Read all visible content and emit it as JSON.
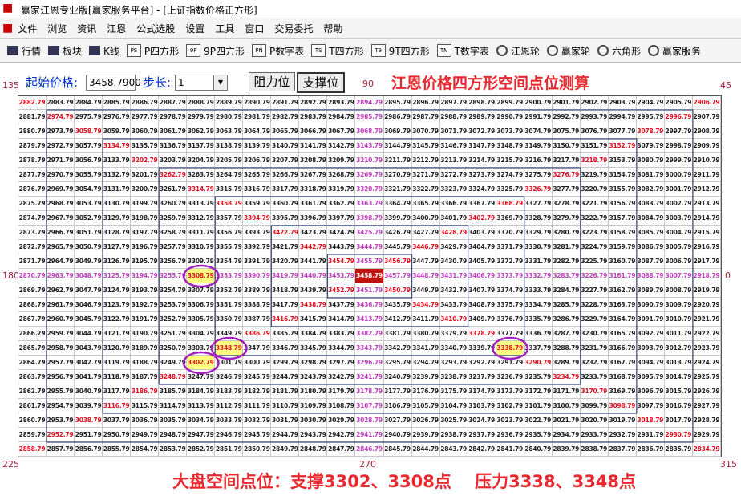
{
  "window": {
    "title": "赢家江恩专业版[赢家服务平台] - [上证指数价格正方形]"
  },
  "menu": [
    "文件",
    "浏览",
    "资讯",
    "江恩",
    "公式选股",
    "设置",
    "工具",
    "窗口",
    "交易委托",
    "帮助"
  ],
  "toolbar": [
    {
      "label": "行情"
    },
    {
      "label": "板块"
    },
    {
      "label": "K线"
    },
    {
      "icon": "PS",
      "label": "P四方形"
    },
    {
      "icon": "9P",
      "label": "9P四方形"
    },
    {
      "icon": "PN",
      "label": "P数字表"
    },
    {
      "icon": "TS",
      "label": "T四方形"
    },
    {
      "icon": "T9",
      "label": "9T四方形"
    },
    {
      "icon": "TN",
      "label": "T数字表"
    },
    {
      "label": "江恩轮"
    },
    {
      "label": "赢家轮"
    },
    {
      "label": "六角形"
    },
    {
      "label": "赢家服务"
    }
  ],
  "controls": {
    "start_label": "起始价格:",
    "start_value": "3458.7900",
    "step_label": "步长:",
    "step_value": "1",
    "buttons": [
      "阻力位",
      "支撑位"
    ]
  },
  "heading": "江恩价格四方形空间点位测算",
  "angles": {
    "top_left": "135",
    "top": "90",
    "top_right": "45",
    "left": "180",
    "right": "0",
    "bottom_left": "225",
    "bottom": "270",
    "bottom_right": "315"
  },
  "grid": {
    "rows": [
      [
        "2882.79",
        "2883.79",
        "2884.79",
        "2885.79",
        "2886.79",
        "2887.79",
        "2888.79",
        "2889.79",
        "2890.79",
        "2891.79",
        "2892.79",
        "2893.79",
        "2894.79",
        "2895.79",
        "2896.79",
        "2897.79",
        "2898.79",
        "2899.79",
        "2900.79",
        "2901.79",
        "2902.79",
        "2903.79",
        "2904.79",
        "2905.79",
        "2906.79"
      ],
      [
        "2881.79",
        "2974.79",
        "2975.79",
        "2976.79",
        "2977.79",
        "2978.79",
        "2979.79",
        "2980.79",
        "2981.79",
        "2982.79",
        "2983.79",
        "2984.79",
        "2985.79",
        "2986.79",
        "2987.79",
        "2988.79",
        "2989.79",
        "2990.79",
        "2991.79",
        "2992.79",
        "2993.79",
        "2994.79",
        "2995.79",
        "2996.79",
        "2907.79"
      ],
      [
        "2880.79",
        "2973.79",
        "3058.79",
        "3059.79",
        "3060.79",
        "3061.79",
        "3062.79",
        "3063.79",
        "3064.79",
        "3065.79",
        "3066.79",
        "3067.79",
        "3068.79",
        "3069.79",
        "3070.79",
        "3071.79",
        "3072.79",
        "3073.79",
        "3074.79",
        "3075.79",
        "3076.79",
        "3077.79",
        "3078.79",
        "2997.79",
        "2908.79"
      ],
      [
        "2879.79",
        "2972.79",
        "3057.79",
        "3134.79",
        "3135.79",
        "3136.79",
        "3137.79",
        "3138.79",
        "3139.79",
        "3140.79",
        "3141.79",
        "3142.79",
        "3143.79",
        "3144.79",
        "3145.79",
        "3146.79",
        "3147.79",
        "3148.79",
        "3149.79",
        "3150.79",
        "3151.79",
        "3152.79",
        "3079.79",
        "2998.79",
        "2909.79"
      ],
      [
        "2878.79",
        "2971.79",
        "3056.79",
        "3133.79",
        "3202.79",
        "3203.79",
        "3204.79",
        "3205.79",
        "3206.79",
        "3207.79",
        "3208.79",
        "3209.79",
        "3210.79",
        "3211.79",
        "3212.79",
        "3213.79",
        "3214.79",
        "3215.79",
        "3216.79",
        "3217.79",
        "3218.79",
        "3153.79",
        "3080.79",
        "2999.79",
        "2910.79"
      ],
      [
        "2877.79",
        "2970.79",
        "3055.79",
        "3132.79",
        "3201.79",
        "3262.79",
        "3263.79",
        "3264.79",
        "3265.79",
        "3266.79",
        "3267.79",
        "3268.79",
        "3269.79",
        "3270.79",
        "3271.79",
        "3272.79",
        "3273.79",
        "3274.79",
        "3275.79",
        "3276.79",
        "3219.79",
        "3154.79",
        "3081.79",
        "3000.79",
        "2911.79"
      ],
      [
        "2876.79",
        "2969.79",
        "3054.79",
        "3131.79",
        "3200.79",
        "3261.79",
        "3314.79",
        "3315.79",
        "3316.79",
        "3317.79",
        "3318.79",
        "3319.79",
        "3320.79",
        "3321.79",
        "3322.79",
        "3323.79",
        "3324.79",
        "3325.79",
        "3326.79",
        "3277.79",
        "3220.79",
        "3155.79",
        "3082.79",
        "3001.79",
        "2912.79"
      ],
      [
        "2875.79",
        "2968.79",
        "3053.79",
        "3130.79",
        "3199.79",
        "3260.79",
        "3313.79",
        "3358.79",
        "3359.79",
        "3360.79",
        "3361.79",
        "3362.79",
        "3363.79",
        "3364.79",
        "3365.79",
        "3366.79",
        "3367.79",
        "3368.79",
        "3327.79",
        "3278.79",
        "3221.79",
        "3156.79",
        "3083.79",
        "3002.79",
        "2913.79"
      ],
      [
        "2874.79",
        "2967.79",
        "3052.79",
        "3129.79",
        "3198.79",
        "3259.79",
        "3312.79",
        "3357.79",
        "3394.79",
        "3395.79",
        "3396.79",
        "3397.79",
        "3398.79",
        "3399.79",
        "3400.79",
        "3401.79",
        "3402.79",
        "3369.79",
        "3328.79",
        "3279.79",
        "3222.79",
        "3157.79",
        "3084.79",
        "3003.79",
        "2914.79"
      ],
      [
        "2873.79",
        "2966.79",
        "3051.79",
        "3128.79",
        "3197.79",
        "3258.79",
        "3311.79",
        "3356.79",
        "3393.79",
        "3422.79",
        "3423.79",
        "3424.79",
        "3425.79",
        "3426.79",
        "3427.79",
        "3428.79",
        "3403.79",
        "3370.79",
        "3329.79",
        "3280.79",
        "3223.79",
        "3158.79",
        "3085.79",
        "3004.79",
        "2915.79"
      ],
      [
        "2872.79",
        "2965.79",
        "3050.79",
        "3127.79",
        "3196.79",
        "3257.79",
        "3310.79",
        "3355.79",
        "3392.79",
        "3421.79",
        "3442.79",
        "3443.79",
        "3444.79",
        "3445.79",
        "3446.79",
        "3429.79",
        "3404.79",
        "3371.79",
        "3330.79",
        "3281.79",
        "3224.79",
        "3159.79",
        "3086.79",
        "3005.79",
        "2916.79"
      ],
      [
        "2871.79",
        "2964.79",
        "3049.79",
        "3126.79",
        "3195.79",
        "3256.79",
        "3309.79",
        "3354.79",
        "3391.79",
        "3420.79",
        "3441.79",
        "3454.79",
        "3455.79",
        "3456.79",
        "3447.79",
        "3430.79",
        "3405.79",
        "3372.79",
        "3331.79",
        "3282.79",
        "3225.79",
        "3160.79",
        "3087.79",
        "3006.79",
        "2917.79"
      ],
      [
        "2870.79",
        "2963.79",
        "3048.79",
        "3125.79",
        "3194.79",
        "3255.79",
        "3308.79",
        "3353.79",
        "3390.79",
        "3419.79",
        "3440.79",
        "3453.79",
        "3458.79",
        "3457.79",
        "3448.79",
        "3431.79",
        "3406.79",
        "3373.79",
        "3332.79",
        "3283.79",
        "3226.79",
        "3161.79",
        "3088.79",
        "3007.79",
        "2918.79"
      ],
      [
        "2869.79",
        "2962.79",
        "3047.79",
        "3124.79",
        "3193.79",
        "3254.79",
        "3307.79",
        "3352.79",
        "3389.79",
        "3418.79",
        "3439.79",
        "3452.79",
        "3451.79",
        "3450.79",
        "3449.79",
        "3432.79",
        "3407.79",
        "3374.79",
        "3333.79",
        "3284.79",
        "3227.79",
        "3162.79",
        "3089.79",
        "3008.79",
        "2919.79"
      ],
      [
        "2868.79",
        "2961.79",
        "3046.79",
        "3123.79",
        "3192.79",
        "3253.79",
        "3306.79",
        "3351.79",
        "3388.79",
        "3417.79",
        "3438.79",
        "3437.79",
        "3436.79",
        "3435.79",
        "3434.79",
        "3433.79",
        "3408.79",
        "3375.79",
        "3334.79",
        "3285.79",
        "3228.79",
        "3163.79",
        "3090.79",
        "3009.79",
        "2920.79"
      ],
      [
        "2867.79",
        "2960.79",
        "3045.79",
        "3122.79",
        "3191.79",
        "3252.79",
        "3305.79",
        "3350.79",
        "3387.79",
        "3416.79",
        "3415.79",
        "3414.79",
        "3413.79",
        "3412.79",
        "3411.79",
        "3410.79",
        "3409.79",
        "3376.79",
        "3335.79",
        "3286.79",
        "3229.79",
        "3164.79",
        "3091.79",
        "3010.79",
        "2921.79"
      ],
      [
        "2866.79",
        "2959.79",
        "3044.79",
        "3121.79",
        "3190.79",
        "3251.79",
        "3304.79",
        "3349.79",
        "3386.79",
        "3385.79",
        "3384.79",
        "3383.79",
        "3382.79",
        "3381.79",
        "3380.79",
        "3379.79",
        "3378.79",
        "3377.79",
        "3336.79",
        "3287.79",
        "3230.79",
        "3165.79",
        "3092.79",
        "3011.79",
        "2922.79"
      ],
      [
        "2865.79",
        "2958.79",
        "3043.79",
        "3120.79",
        "3189.79",
        "3250.79",
        "3303.79",
        "3348.79",
        "3347.79",
        "3346.79",
        "3345.79",
        "3344.79",
        "3343.79",
        "3342.79",
        "3341.79",
        "3340.79",
        "3339.79",
        "3338.79",
        "3337.79",
        "3288.79",
        "3231.79",
        "3166.79",
        "3093.79",
        "3012.79",
        "2923.79"
      ],
      [
        "2864.79",
        "2957.79",
        "3042.79",
        "3119.79",
        "3188.79",
        "3249.79",
        "3302.79",
        "3301.79",
        "3300.79",
        "3299.79",
        "3298.79",
        "3297.79",
        "3296.79",
        "3295.79",
        "3294.79",
        "3293.79",
        "3292.79",
        "3291.79",
        "3290.79",
        "3289.79",
        "3232.79",
        "3167.79",
        "3094.79",
        "3013.79",
        "2924.79"
      ],
      [
        "2863.79",
        "2956.79",
        "3041.79",
        "3118.79",
        "3187.79",
        "3248.79",
        "3247.79",
        "3246.79",
        "3245.79",
        "3244.79",
        "3243.79",
        "3242.79",
        "3241.79",
        "3240.79",
        "3239.79",
        "3238.79",
        "3237.79",
        "3236.79",
        "3235.79",
        "3234.79",
        "3233.79",
        "3168.79",
        "3095.79",
        "3014.79",
        "2925.79"
      ],
      [
        "2862.79",
        "2955.79",
        "3040.79",
        "3117.79",
        "3186.79",
        "3185.79",
        "3184.79",
        "3183.79",
        "3182.79",
        "3181.79",
        "3180.79",
        "3179.79",
        "3178.79",
        "3177.79",
        "3176.79",
        "3175.79",
        "3174.79",
        "3173.79",
        "3172.79",
        "3171.79",
        "3170.79",
        "3169.79",
        "3096.79",
        "3015.79",
        "2926.79"
      ],
      [
        "2861.79",
        "2954.79",
        "3039.79",
        "3116.79",
        "3115.79",
        "3114.79",
        "3113.79",
        "3112.79",
        "3111.79",
        "3110.79",
        "3109.79",
        "3108.79",
        "3107.79",
        "3106.79",
        "3105.79",
        "3104.79",
        "3103.79",
        "3102.79",
        "3101.79",
        "3100.79",
        "3099.79",
        "3098.79",
        "3097.79",
        "3016.79",
        "2927.79"
      ],
      [
        "2860.79",
        "2953.79",
        "3038.79",
        "3037.79",
        "3036.79",
        "3035.79",
        "3034.79",
        "3033.79",
        "3032.79",
        "3031.79",
        "3030.79",
        "3029.79",
        "3028.79",
        "3027.79",
        "3026.79",
        "3025.79",
        "3024.79",
        "3023.79",
        "3022.79",
        "3021.79",
        "3020.79",
        "3019.79",
        "3018.79",
        "3017.79",
        "2928.79"
      ],
      [
        "2859.79",
        "2952.79",
        "2951.79",
        "2950.79",
        "2949.79",
        "2948.79",
        "2947.79",
        "2946.79",
        "2945.79",
        "2944.79",
        "2943.79",
        "2942.79",
        "2941.79",
        "2940.79",
        "2939.79",
        "2938.79",
        "2937.79",
        "2936.79",
        "2935.79",
        "2934.79",
        "2933.79",
        "2932.79",
        "2931.79",
        "2930.79",
        "2929.79"
      ],
      [
        "2858.79",
        "2857.79",
        "2856.79",
        "2855.79",
        "2854.79",
        "2853.79",
        "2852.79",
        "2851.79",
        "2850.79",
        "2849.79",
        "2848.79",
        "2847.79",
        "2846.79",
        "2845.79",
        "2844.79",
        "2843.79",
        "2842.79",
        "2841.79",
        "2840.79",
        "2839.79",
        "2838.79",
        "2837.79",
        "2836.79",
        "2835.79",
        "2834.79"
      ]
    ]
  },
  "footer": "大盘空间点位：支撑3302、3308点    压力3338、3348点"
}
